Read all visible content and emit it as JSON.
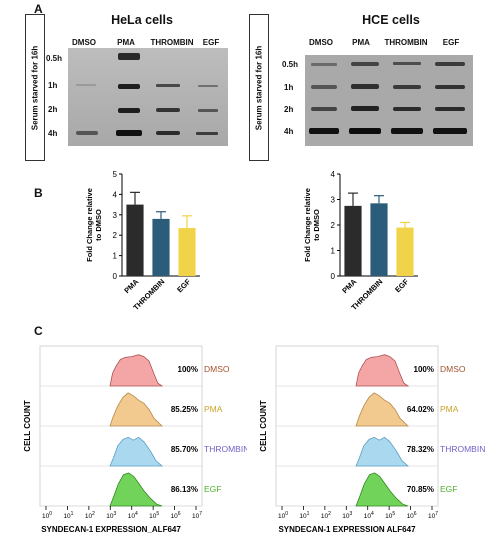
{
  "panel_a": {
    "letter": "A",
    "vertical_label": "Serum starved for 16h",
    "hela": {
      "title": "HeLa cells",
      "lanes": [
        "DMSO",
        "PMA",
        "THROMBIN",
        "EGF"
      ],
      "times": [
        "0.5h",
        "1h",
        "2h",
        "4h"
      ]
    },
    "hce": {
      "title": "HCE cells",
      "lanes": [
        "DMSO",
        "PMA",
        "THROMBIN",
        "EGF"
      ],
      "times": [
        "0.5h",
        "1h",
        "2h",
        "4h"
      ]
    }
  },
  "panel_b": {
    "letter": "B"
  },
  "panel_c": {
    "letter": "C",
    "ylabel": "CELL COUNT",
    "xlabel_left": "SYNDECAN-1 EXPRESSION_ALF647",
    "xlabel_right": "SYNDECAN-1 EXPRESSION  ALF647",
    "tick_labels": [
      "10",
      "10",
      "10",
      "10",
      "10",
      "10",
      "10",
      "10"
    ],
    "tick_exps": [
      "0",
      "1",
      "2",
      "3",
      "4",
      "5",
      "6",
      "7"
    ],
    "conditions": [
      "DMSO",
      "PMA",
      "THROMBIN",
      "EGF"
    ],
    "colors": [
      "#a0522d",
      "#c9a227",
      "#6f63c7",
      "#4caf2a"
    ],
    "left_pcts": [
      "100%",
      "85.25%",
      "85.70%",
      "86.13%"
    ],
    "right_pcts": [
      "100%",
      "64.02%",
      "78.32%",
      "70.85%"
    ]
  },
  "chart_data": [
    {
      "type": "bar",
      "categories": [
        "PMA",
        "THROMBIN",
        "EGF"
      ],
      "values": [
        3.5,
        2.8,
        2.35
      ],
      "errors": [
        0.6,
        0.35,
        0.6
      ],
      "colors": [
        "#2b2b2b",
        "#2b5c7a",
        "#f1d34a"
      ],
      "ylabel": "Fold Change relative to DMSO",
      "ylim": [
        0,
        5
      ],
      "yticks": [
        "0",
        "1",
        "2",
        "3",
        "4",
        "5"
      ]
    },
    {
      "type": "bar",
      "categories": [
        "PMA",
        "THROMBIN",
        "EGF"
      ],
      "values": [
        2.75,
        2.85,
        1.9
      ],
      "errors": [
        0.5,
        0.3,
        0.2
      ],
      "colors": [
        "#2b2b2b",
        "#2b5c7a",
        "#f1d34a"
      ],
      "ylabel": "Fold Change relative to DMSO",
      "ylim": [
        0,
        4
      ],
      "yticks": [
        "0",
        "1",
        "2",
        "3",
        "4"
      ]
    }
  ]
}
